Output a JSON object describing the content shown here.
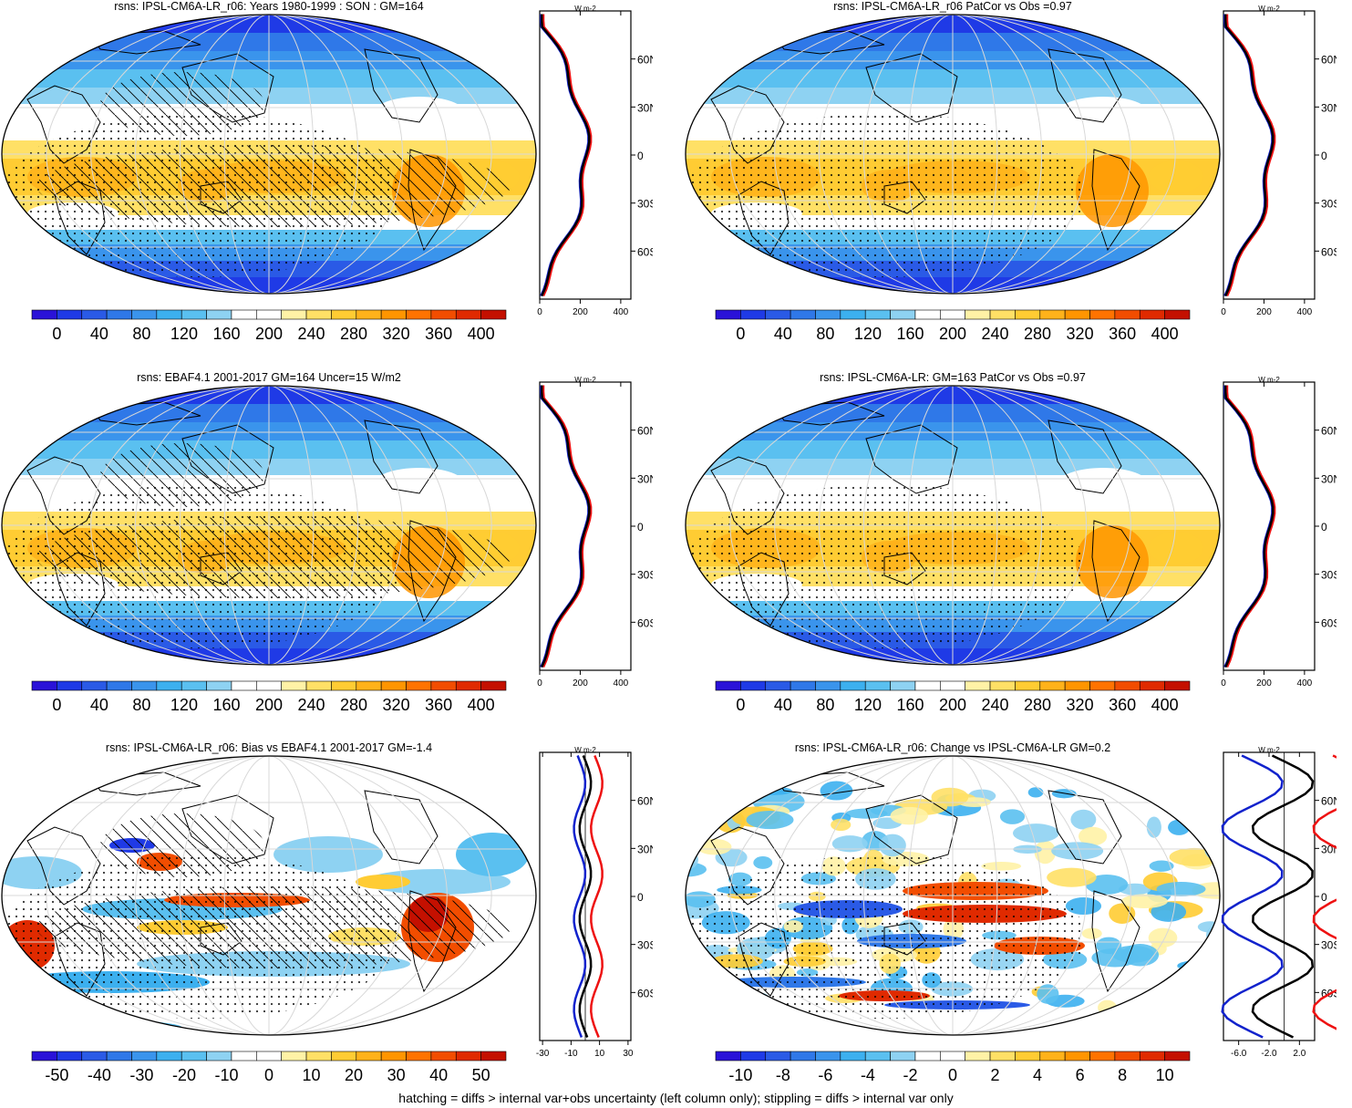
{
  "palette": [
    "#2a12d8",
    "#1f3ae6",
    "#2a5ae6",
    "#2f78e8",
    "#3a94ec",
    "#3cb0ef",
    "#5ac0f0",
    "#8ed2f2",
    "#ffffff",
    "#ffffff",
    "#fff2a6",
    "#ffe066",
    "#ffcc33",
    "#ffb21a",
    "#ff9500",
    "#ff7300",
    "#f24d00",
    "#e02a00",
    "#c41000"
  ],
  "footnote": "hatching = diffs > internal var+obs uncertainty (left column only); stippling = diffs > internal var only",
  "panels": [
    {
      "id": "p1",
      "title": "rsns: IPSL-CM6A-LR_r06: Years 1980-1999 : SON : GM=164",
      "map_kind": "climatology",
      "hatched": true,
      "colorbar_labels": [
        "0",
        "40",
        "80",
        "120",
        "160",
        "200",
        "240",
        "280",
        "320",
        "360",
        "400"
      ],
      "zonal": {
        "units": "W m-2",
        "xticks": [
          "0",
          "200",
          "400"
        ],
        "xlim": [
          0,
          450
        ],
        "lat_labels": [
          "60N",
          "30N",
          "0",
          "30S",
          "60S"
        ],
        "zero_line": false
      }
    },
    {
      "id": "p2",
      "title": "rsns: IPSL-CM6A-LR_r06 PatCor vs Obs =0.97",
      "map_kind": "climatology",
      "hatched": false,
      "colorbar_labels": [
        "0",
        "40",
        "80",
        "120",
        "160",
        "200",
        "240",
        "280",
        "320",
        "360",
        "400"
      ],
      "zonal": {
        "units": "W m-2",
        "xticks": [
          "0",
          "200",
          "400"
        ],
        "xlim": [
          0,
          450
        ],
        "lat_labels": [
          "60N",
          "30N",
          "0",
          "30S",
          "60S"
        ],
        "zero_line": false
      }
    },
    {
      "id": "p3",
      "title": "rsns: EBAF4.1 2001-2017 GM=164 Uncer=15 W/m2",
      "map_kind": "climatology",
      "hatched": true,
      "colorbar_labels": [
        "0",
        "40",
        "80",
        "120",
        "160",
        "200",
        "240",
        "280",
        "320",
        "360",
        "400"
      ],
      "zonal": {
        "units": "W m-2",
        "xticks": [
          "0",
          "200",
          "400"
        ],
        "xlim": [
          0,
          450
        ],
        "lat_labels": [
          "60N",
          "30N",
          "0",
          "30S",
          "60S"
        ],
        "zero_line": false
      }
    },
    {
      "id": "p4",
      "title": "rsns: IPSL-CM6A-LR: GM=163 PatCor vs Obs =0.97",
      "map_kind": "climatology",
      "hatched": false,
      "colorbar_labels": [
        "0",
        "40",
        "80",
        "120",
        "160",
        "200",
        "240",
        "280",
        "320",
        "360",
        "400"
      ],
      "zonal": {
        "units": "W m-2",
        "xticks": [
          "0",
          "200",
          "400"
        ],
        "xlim": [
          0,
          450
        ],
        "lat_labels": [
          "60N",
          "30N",
          "0",
          "30S",
          "60S"
        ],
        "zero_line": false
      }
    },
    {
      "id": "p5",
      "title": "rsns: IPSL-CM6A-LR_r06: Bias vs EBAF4.1 2001-2017  GM=-1.4",
      "map_kind": "bias",
      "hatched": true,
      "colorbar_labels": [
        "-50",
        "-40",
        "-30",
        "-20",
        "-10",
        "0",
        "10",
        "20",
        "30",
        "40",
        "50"
      ],
      "zonal": {
        "units": "W m-2",
        "xticks": [
          "-30",
          "-10",
          "10",
          "30"
        ],
        "xlim": [
          -32,
          32
        ],
        "lat_labels": [
          "60N",
          "30N",
          "0",
          "30S",
          "60S"
        ],
        "zero_line": true
      }
    },
    {
      "id": "p6",
      "title": "rsns: IPSL-CM6A-LR_r06: Change vs IPSL-CM6A-LR GM=0.2",
      "map_kind": "change",
      "hatched": false,
      "colorbar_labels": [
        "-10",
        "-8",
        "-6",
        "-4",
        "-2",
        "0",
        "2",
        "4",
        "6",
        "8",
        "10"
      ],
      "zonal": {
        "units": "W m-2",
        "xticks": [
          "-6.0",
          "-2.0",
          "2.0"
        ],
        "xlim": [
          -8,
          4
        ],
        "lat_labels": [
          "60N",
          "30N",
          "0",
          "30S",
          "60S"
        ],
        "zero_line": true
      }
    }
  ]
}
